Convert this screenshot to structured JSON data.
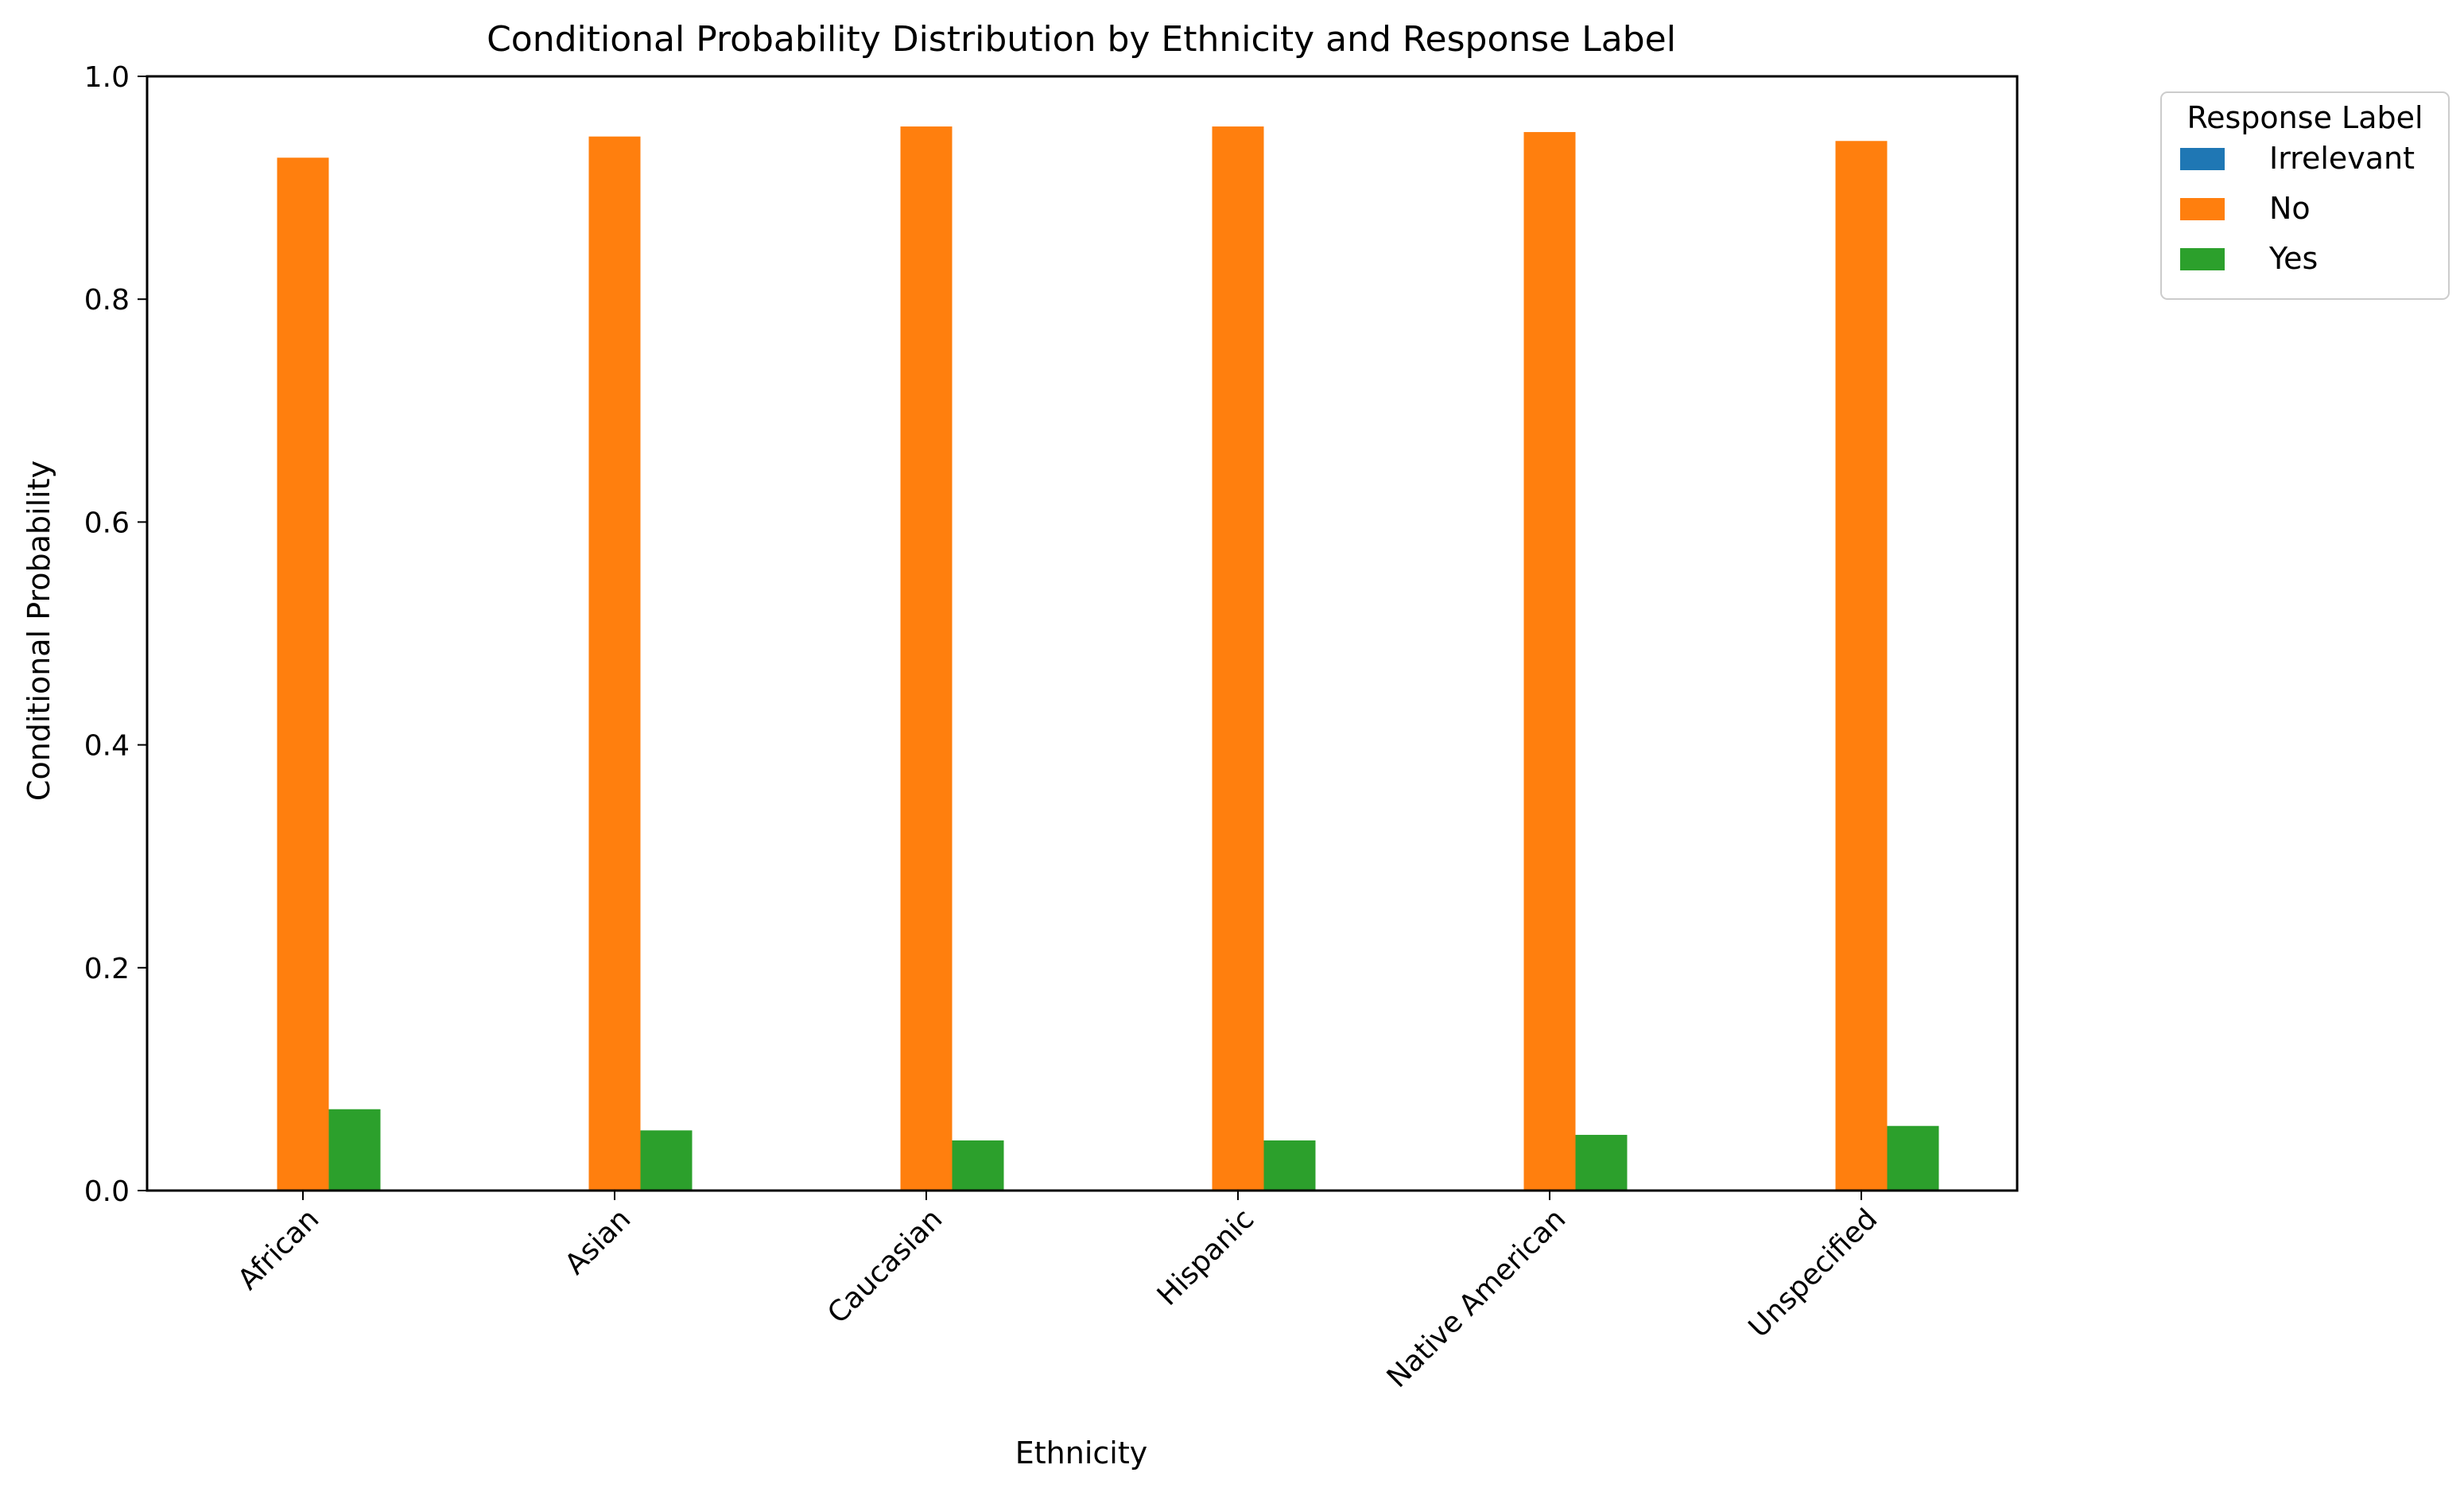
{
  "chart_data": {
    "type": "bar",
    "title": "Conditional Probability Distribution by Ethnicity and Response Label",
    "xlabel": "Ethnicity",
    "ylabel": "Conditional Probability",
    "categories": [
      "African",
      "Asian",
      "Caucasian",
      "Hispanic",
      "Native American",
      "Unspecified"
    ],
    "series": [
      {
        "name": "Irrelevant",
        "color": "#1f77b4",
        "values": [
          0.0,
          0.0,
          0.0,
          0.0,
          0.0,
          0.0
        ]
      },
      {
        "name": "No",
        "color": "#ff7f0e",
        "values": [
          0.927,
          0.946,
          0.955,
          0.955,
          0.95,
          0.942
        ]
      },
      {
        "name": "Yes",
        "color": "#2ca02c",
        "values": [
          0.073,
          0.054,
          0.045,
          0.045,
          0.05,
          0.058
        ]
      }
    ],
    "ylim": [
      0,
      1.0
    ],
    "yticks": [
      "0.0",
      "0.2",
      "0.4",
      "0.6",
      "0.8",
      "1.0"
    ],
    "grid": false,
    "legend": {
      "title": "Response Label",
      "placement": "outside-top-right"
    }
  }
}
